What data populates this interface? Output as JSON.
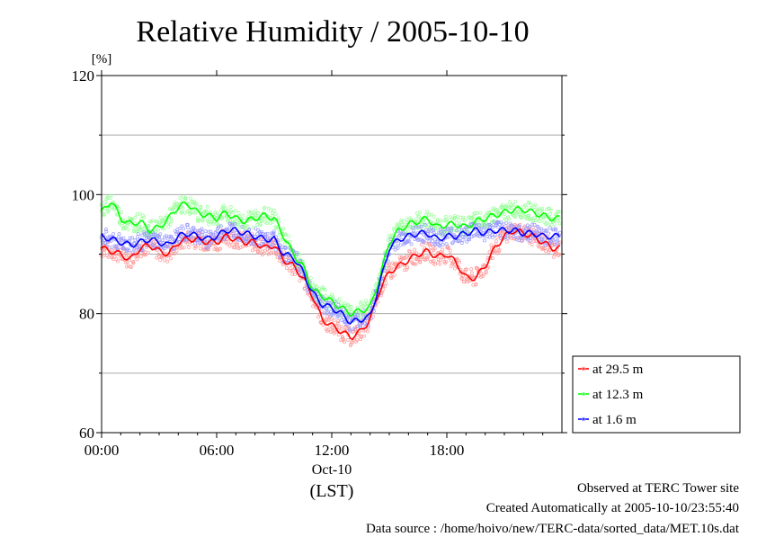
{
  "chart_data": {
    "type": "line",
    "title": "Relative Humidity / 2005-10-10",
    "ylabel": "[%]",
    "ylim": [
      60,
      120
    ],
    "yticks": [
      60,
      80,
      100,
      120
    ],
    "yminor": [
      70,
      90,
      110
    ],
    "xlim": [
      0,
      24
    ],
    "xticks": [
      {
        "x": 0,
        "label": "00:00"
      },
      {
        "x": 6,
        "label": "06:00"
      },
      {
        "x": 12,
        "label": "12:00"
      },
      {
        "x": 18,
        "label": "18:00"
      }
    ],
    "xsublabel": "Oct-10",
    "xunit": "(LST)",
    "grid": "horizontal",
    "legend_position": "right-bottom",
    "series": [
      {
        "name": "at 29.5 m",
        "color": "#ff0000",
        "scatter_color": "#ff9a9a",
        "x": [
          0,
          0.5,
          1,
          1.5,
          2,
          2.5,
          3,
          3.5,
          4,
          4.5,
          5,
          5.5,
          6,
          6.5,
          7,
          7.5,
          8,
          8.5,
          9,
          9.5,
          10,
          10.5,
          11,
          11.5,
          12,
          12.5,
          13,
          13.5,
          14,
          14.5,
          15,
          15.5,
          16,
          16.5,
          17,
          17.5,
          18,
          18.5,
          19,
          19.5,
          20,
          20.5,
          21,
          21.5,
          22,
          22.5,
          23,
          23.5
        ],
        "values": [
          91,
          90.5,
          90,
          89,
          91,
          91.5,
          90.5,
          90,
          92,
          92.5,
          92.5,
          92,
          92,
          93,
          92.5,
          92,
          92,
          91,
          91.5,
          89,
          88,
          86,
          83,
          79,
          78,
          77,
          76,
          77,
          79,
          84,
          87,
          88,
          89,
          90,
          90.5,
          89.5,
          90,
          88.5,
          86,
          86,
          88,
          91,
          93,
          94,
          93.5,
          93,
          92,
          91
        ]
      },
      {
        "name": "at 12.3 m",
        "color": "#00ff00",
        "scatter_color": "#9aff9a",
        "x": [
          0,
          0.5,
          1,
          1.5,
          2,
          2.5,
          3,
          3.5,
          4,
          4.5,
          5,
          5.5,
          6,
          6.5,
          7,
          7.5,
          8,
          8.5,
          9,
          9.5,
          10,
          10.5,
          11,
          11.5,
          12,
          12.5,
          13,
          13.5,
          14,
          14.5,
          15,
          15.5,
          16,
          16.5,
          17,
          17.5,
          18,
          18.5,
          19,
          19.5,
          20,
          20.5,
          21,
          21.5,
          22,
          22.5,
          23,
          23.5
        ],
        "values": [
          97,
          99,
          96,
          95,
          95.5,
          94,
          94.5,
          96,
          98,
          98.5,
          97,
          96.5,
          96,
          97,
          96,
          95.5,
          96,
          96.5,
          96,
          93,
          90,
          88,
          84,
          83,
          82,
          81,
          80,
          80.5,
          81,
          86,
          92,
          94,
          95,
          95.5,
          96,
          94.5,
          95,
          95,
          94.5,
          95.5,
          96,
          96.5,
          97,
          97.5,
          97.5,
          97,
          96.5,
          96
        ]
      },
      {
        "name": "at 1.6 m",
        "color": "#0000ff",
        "scatter_color": "#9a9aff",
        "x": [
          0,
          0.5,
          1,
          1.5,
          2,
          2.5,
          3,
          3.5,
          4,
          4.5,
          5,
          5.5,
          6,
          6.5,
          7,
          7.5,
          8,
          8.5,
          9,
          9.5,
          10,
          10.5,
          11,
          11.5,
          12,
          12.5,
          13,
          13.5,
          14,
          14.5,
          15,
          15.5,
          16,
          16.5,
          17,
          17.5,
          18,
          18.5,
          19,
          19.5,
          20,
          20.5,
          21,
          21.5,
          22,
          22.5,
          23,
          23.5
        ],
        "values": [
          93,
          92.5,
          92,
          91.5,
          92,
          92.5,
          92,
          91.5,
          93,
          93.5,
          93,
          92.5,
          93,
          94,
          94,
          93.5,
          93,
          92.5,
          92.5,
          90,
          89.5,
          87,
          83.5,
          81.5,
          81,
          80,
          78.5,
          79,
          79.5,
          85,
          91,
          92.5,
          93,
          93.5,
          93.5,
          92.5,
          93,
          93,
          93.5,
          94,
          93.5,
          94,
          94,
          94,
          93.5,
          93.5,
          93,
          93
        ]
      }
    ]
  },
  "footer": {
    "line1": "Observed at TERC Tower site",
    "line2": "Created Automatically at 2005-10-10/23:55:40",
    "line3": "Data source : /home/hoivo/new/TERC-data/sorted_data/MET.10s.dat"
  }
}
